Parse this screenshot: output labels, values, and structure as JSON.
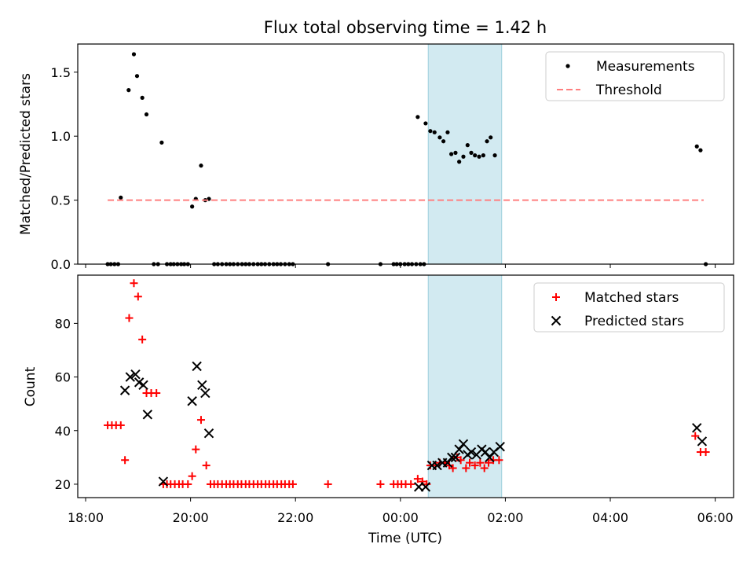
{
  "chart_data": {
    "type": "scatter",
    "title": "Flux total observing time = 1.42 h",
    "xlabel": "Time (UTC)",
    "xlim": [
      -0.15,
      12.35
    ],
    "x_unit": "hours since 18:00 UTC",
    "xticks": [
      0,
      2,
      4,
      6,
      8,
      10,
      12
    ],
    "xtick_labels": [
      "18:00",
      "20:00",
      "22:00",
      "00:00",
      "02:00",
      "04:00",
      "06:00"
    ],
    "highlight_span": {
      "start": 6.53,
      "end": 7.93,
      "color": "#add8e6"
    },
    "panels": [
      {
        "ylabel": "Matched/Predicted stars",
        "ylim": [
          0,
          1.72
        ],
        "yticks": [
          0.0,
          0.5,
          1.0,
          1.5
        ],
        "ytick_labels": [
          "0.0",
          "0.5",
          "1.0",
          "1.5"
        ],
        "legend_position": "top-right",
        "series": [
          {
            "name": "Measurements",
            "marker": "dot",
            "color": "#000000",
            "points": [
              [
                0.42,
                0
              ],
              [
                0.48,
                0
              ],
              [
                0.55,
                0
              ],
              [
                0.62,
                0
              ],
              [
                0.67,
                0.52
              ],
              [
                0.82,
                1.36
              ],
              [
                0.92,
                1.64
              ],
              [
                0.98,
                1.47
              ],
              [
                1.08,
                1.3
              ],
              [
                1.16,
                1.17
              ],
              [
                1.3,
                0
              ],
              [
                1.38,
                0
              ],
              [
                1.45,
                0.95
              ],
              [
                1.55,
                0
              ],
              [
                1.62,
                0
              ],
              [
                1.68,
                0
              ],
              [
                1.75,
                0
              ],
              [
                1.82,
                0
              ],
              [
                1.88,
                0
              ],
              [
                1.95,
                0
              ],
              [
                2.03,
                0.45
              ],
              [
                2.1,
                0.51
              ],
              [
                2.2,
                0.77
              ],
              [
                2.28,
                0.5
              ],
              [
                2.35,
                0.51
              ],
              [
                2.45,
                0
              ],
              [
                2.52,
                0
              ],
              [
                2.6,
                0
              ],
              [
                2.68,
                0
              ],
              [
                2.75,
                0
              ],
              [
                2.82,
                0
              ],
              [
                2.9,
                0
              ],
              [
                2.98,
                0
              ],
              [
                3.05,
                0
              ],
              [
                3.12,
                0
              ],
              [
                3.2,
                0
              ],
              [
                3.28,
                0
              ],
              [
                3.35,
                0
              ],
              [
                3.42,
                0
              ],
              [
                3.5,
                0
              ],
              [
                3.58,
                0
              ],
              [
                3.65,
                0
              ],
              [
                3.72,
                0
              ],
              [
                3.8,
                0
              ],
              [
                3.88,
                0
              ],
              [
                3.95,
                0
              ],
              [
                4.62,
                0
              ],
              [
                5.62,
                0
              ],
              [
                5.87,
                0
              ],
              [
                5.93,
                0
              ],
              [
                6.0,
                0
              ],
              [
                6.08,
                0
              ],
              [
                6.15,
                0
              ],
              [
                6.22,
                0
              ],
              [
                6.33,
                1.15
              ],
              [
                6.3,
                0
              ],
              [
                6.38,
                0
              ],
              [
                6.45,
                0
              ],
              [
                6.48,
                1.1
              ],
              [
                6.57,
                1.04
              ],
              [
                6.65,
                1.03
              ],
              [
                6.75,
                0.99
              ],
              [
                6.82,
                0.96
              ],
              [
                6.9,
                1.03
              ],
              [
                6.97,
                0.86
              ],
              [
                7.05,
                0.87
              ],
              [
                7.12,
                0.8
              ],
              [
                7.2,
                0.84
              ],
              [
                7.28,
                0.93
              ],
              [
                7.35,
                0.87
              ],
              [
                7.42,
                0.85
              ],
              [
                7.5,
                0.84
              ],
              [
                7.58,
                0.85
              ],
              [
                7.65,
                0.96
              ],
              [
                7.72,
                0.99
              ],
              [
                7.8,
                0.85
              ],
              [
                11.65,
                0.92
              ],
              [
                11.72,
                0.89
              ],
              [
                11.82,
                0
              ]
            ]
          },
          {
            "name": "Threshold",
            "marker": "dashed-line",
            "color": "#ff7f7f",
            "points": [
              [
                0.42,
                0.5
              ],
              [
                11.78,
                0.5
              ]
            ]
          }
        ]
      },
      {
        "ylabel": "Count",
        "ylim": [
          15,
          98
        ],
        "yticks": [
          20,
          40,
          60,
          80
        ],
        "ytick_labels": [
          "20",
          "40",
          "60",
          "80"
        ],
        "legend_position": "top-right",
        "series": [
          {
            "name": "Matched stars",
            "marker": "plus",
            "color": "#ff0000",
            "points": [
              [
                0.42,
                42
              ],
              [
                0.5,
                42
              ],
              [
                0.58,
                42
              ],
              [
                0.67,
                42
              ],
              [
                0.75,
                29
              ],
              [
                0.83,
                82
              ],
              [
                0.92,
                95
              ],
              [
                1.0,
                90
              ],
              [
                1.08,
                74
              ],
              [
                1.16,
                54
              ],
              [
                1.25,
                54
              ],
              [
                1.35,
                54
              ],
              [
                1.48,
                20
              ],
              [
                1.55,
                20
              ],
              [
                1.62,
                20
              ],
              [
                1.7,
                20
              ],
              [
                1.78,
                20
              ],
              [
                1.85,
                20
              ],
              [
                1.95,
                20
              ],
              [
                2.03,
                23
              ],
              [
                2.1,
                33
              ],
              [
                2.2,
                44
              ],
              [
                2.3,
                27
              ],
              [
                2.38,
                20
              ],
              [
                2.45,
                20
              ],
              [
                2.52,
                20
              ],
              [
                2.6,
                20
              ],
              [
                2.68,
                20
              ],
              [
                2.75,
                20
              ],
              [
                2.82,
                20
              ],
              [
                2.9,
                20
              ],
              [
                2.97,
                20
              ],
              [
                3.05,
                20
              ],
              [
                3.12,
                20
              ],
              [
                3.2,
                20
              ],
              [
                3.28,
                20
              ],
              [
                3.35,
                20
              ],
              [
                3.43,
                20
              ],
              [
                3.5,
                20
              ],
              [
                3.58,
                20
              ],
              [
                3.65,
                20
              ],
              [
                3.73,
                20
              ],
              [
                3.8,
                20
              ],
              [
                3.88,
                20
              ],
              [
                3.95,
                20
              ],
              [
                4.62,
                20
              ],
              [
                5.62,
                20
              ],
              [
                5.87,
                20
              ],
              [
                5.95,
                20
              ],
              [
                6.02,
                20
              ],
              [
                6.1,
                20
              ],
              [
                6.2,
                20
              ],
              [
                6.33,
                22
              ],
              [
                6.42,
                21
              ],
              [
                6.5,
                20
              ],
              [
                6.57,
                27
              ],
              [
                6.67,
                27
              ],
              [
                6.75,
                28
              ],
              [
                6.85,
                28
              ],
              [
                6.93,
                27
              ],
              [
                7.0,
                26
              ],
              [
                7.08,
                30
              ],
              [
                7.15,
                29
              ],
              [
                7.25,
                26
              ],
              [
                7.32,
                28
              ],
              [
                7.42,
                27
              ],
              [
                7.52,
                28
              ],
              [
                7.6,
                26
              ],
              [
                7.68,
                28
              ],
              [
                7.77,
                29
              ],
              [
                7.88,
                29
              ],
              [
                11.62,
                38
              ],
              [
                11.72,
                32
              ],
              [
                11.82,
                32
              ]
            ]
          },
          {
            "name": "Predicted stars",
            "marker": "x",
            "color": "#000000",
            "points": [
              [
                0.75,
                55
              ],
              [
                0.85,
                60
              ],
              [
                0.95,
                61
              ],
              [
                1.02,
                58
              ],
              [
                1.1,
                57
              ],
              [
                1.18,
                46
              ],
              [
                1.48,
                21
              ],
              [
                2.03,
                51
              ],
              [
                2.12,
                64
              ],
              [
                2.22,
                57
              ],
              [
                2.28,
                54
              ],
              [
                2.35,
                39
              ],
              [
                6.35,
                19
              ],
              [
                6.48,
                19
              ],
              [
                6.6,
                27
              ],
              [
                6.7,
                27
              ],
              [
                6.8,
                28
              ],
              [
                6.9,
                28
              ],
              [
                6.98,
                30
              ],
              [
                7.05,
                30
              ],
              [
                7.12,
                33
              ],
              [
                7.2,
                35
              ],
              [
                7.28,
                31
              ],
              [
                7.35,
                32
              ],
              [
                7.45,
                31
              ],
              [
                7.55,
                33
              ],
              [
                7.62,
                32
              ],
              [
                7.7,
                30
              ],
              [
                7.78,
                32
              ],
              [
                7.9,
                34
              ],
              [
                11.65,
                41
              ],
              [
                11.75,
                36
              ]
            ]
          }
        ]
      }
    ]
  }
}
